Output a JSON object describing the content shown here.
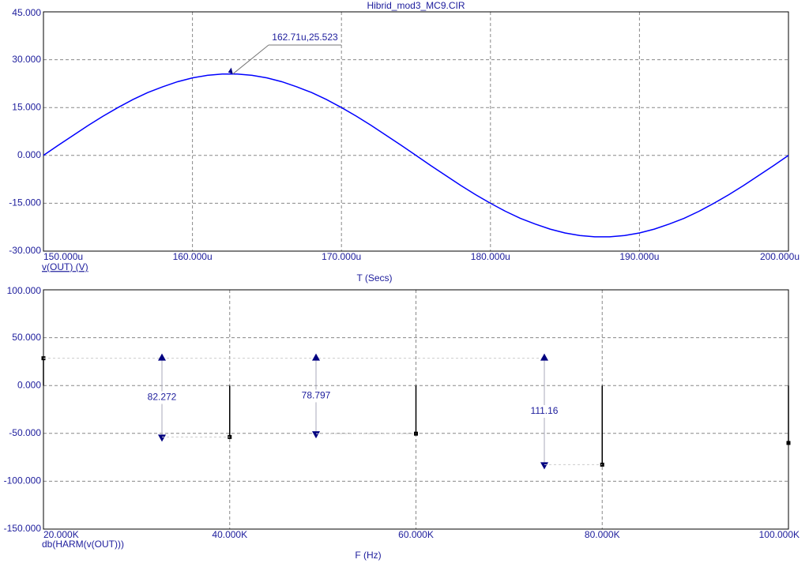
{
  "chart_data": [
    {
      "type": "line",
      "title": "Hibrid_mod3_MC9.CIR",
      "x_label": "T (Secs)",
      "x": [
        150,
        151,
        152,
        153,
        154,
        155,
        156,
        157,
        158,
        159,
        160,
        161,
        162,
        163,
        164,
        165,
        166,
        167,
        168,
        169,
        170,
        171,
        172,
        173,
        174,
        175,
        176,
        177,
        178,
        179,
        180,
        181,
        182,
        183,
        184,
        185,
        186,
        187,
        188,
        189,
        190,
        191,
        192,
        193,
        194,
        195,
        196,
        197,
        198,
        199,
        200
      ],
      "series": [
        {
          "name": "v(OUT) (V)",
          "color": "#0000ff",
          "values": [
            0,
            3.2,
            6.3,
            9.4,
            12.3,
            15.0,
            17.5,
            19.7,
            21.5,
            23.1,
            24.3,
            25.1,
            25.5,
            25.5,
            25.1,
            24.3,
            23.1,
            21.5,
            19.7,
            17.5,
            15.0,
            12.3,
            9.4,
            6.3,
            3.2,
            0,
            -3.2,
            -6.3,
            -9.4,
            -12.3,
            -15.0,
            -17.5,
            -19.7,
            -21.5,
            -23.1,
            -24.3,
            -25.1,
            -25.5,
            -25.5,
            -25.1,
            -24.3,
            -23.1,
            -21.5,
            -19.7,
            -17.5,
            -15.0,
            -12.3,
            -9.4,
            -6.3,
            -3.2,
            0
          ]
        }
      ],
      "xlim": [
        150,
        200
      ],
      "xticks": [
        {
          "value": 150,
          "label": "150.000u"
        },
        {
          "value": 160,
          "label": "160.000u"
        },
        {
          "value": 170,
          "label": "170.000u"
        },
        {
          "value": 180,
          "label": "180.000u"
        },
        {
          "value": 190,
          "label": "190.000u"
        },
        {
          "value": 200,
          "label": "200.000u"
        }
      ],
      "ylim": [
        -30,
        45
      ],
      "yticks": [
        {
          "value": -30,
          "label": "-30.000"
        },
        {
          "value": -15,
          "label": "-15.000"
        },
        {
          "value": 0,
          "label": "0.000"
        },
        {
          "value": 15,
          "label": "15.000"
        },
        {
          "value": 30,
          "label": "30.000"
        },
        {
          "value": 45,
          "label": "45.000"
        }
      ],
      "grid": true,
      "annotation": {
        "label": "162.71u,25.523",
        "x": 162.71,
        "y": 25.523
      }
    },
    {
      "type": "stem",
      "x_label": "F (Hz)",
      "x": [
        20000,
        40000,
        60000,
        80000,
        100000
      ],
      "series": [
        {
          "name": "db(HARM(v(OUT)))",
          "color": "#000000",
          "values": [
            28.5,
            -53.77,
            -50.3,
            -82.66,
            -60.0
          ]
        }
      ],
      "xlim": [
        20000,
        100000
      ],
      "xticks": [
        {
          "value": 20000,
          "label": "20.000K"
        },
        {
          "value": 40000,
          "label": "40.000K"
        },
        {
          "value": 60000,
          "label": "60.000K"
        },
        {
          "value": 80000,
          "label": "80.000K"
        },
        {
          "value": 100000,
          "label": "100.000K"
        }
      ],
      "ylim": [
        -150,
        100
      ],
      "yticks": [
        {
          "value": -150,
          "label": "-150.000"
        },
        {
          "value": -100,
          "label": "-100.000"
        },
        {
          "value": -50,
          "label": "-50.000"
        },
        {
          "value": 0,
          "label": "0.000"
        },
        {
          "value": 50,
          "label": "50.000"
        },
        {
          "value": 100,
          "label": "100.000"
        }
      ],
      "grid": true,
      "annotations": [
        82.272,
        78.797,
        111.16
      ]
    }
  ]
}
